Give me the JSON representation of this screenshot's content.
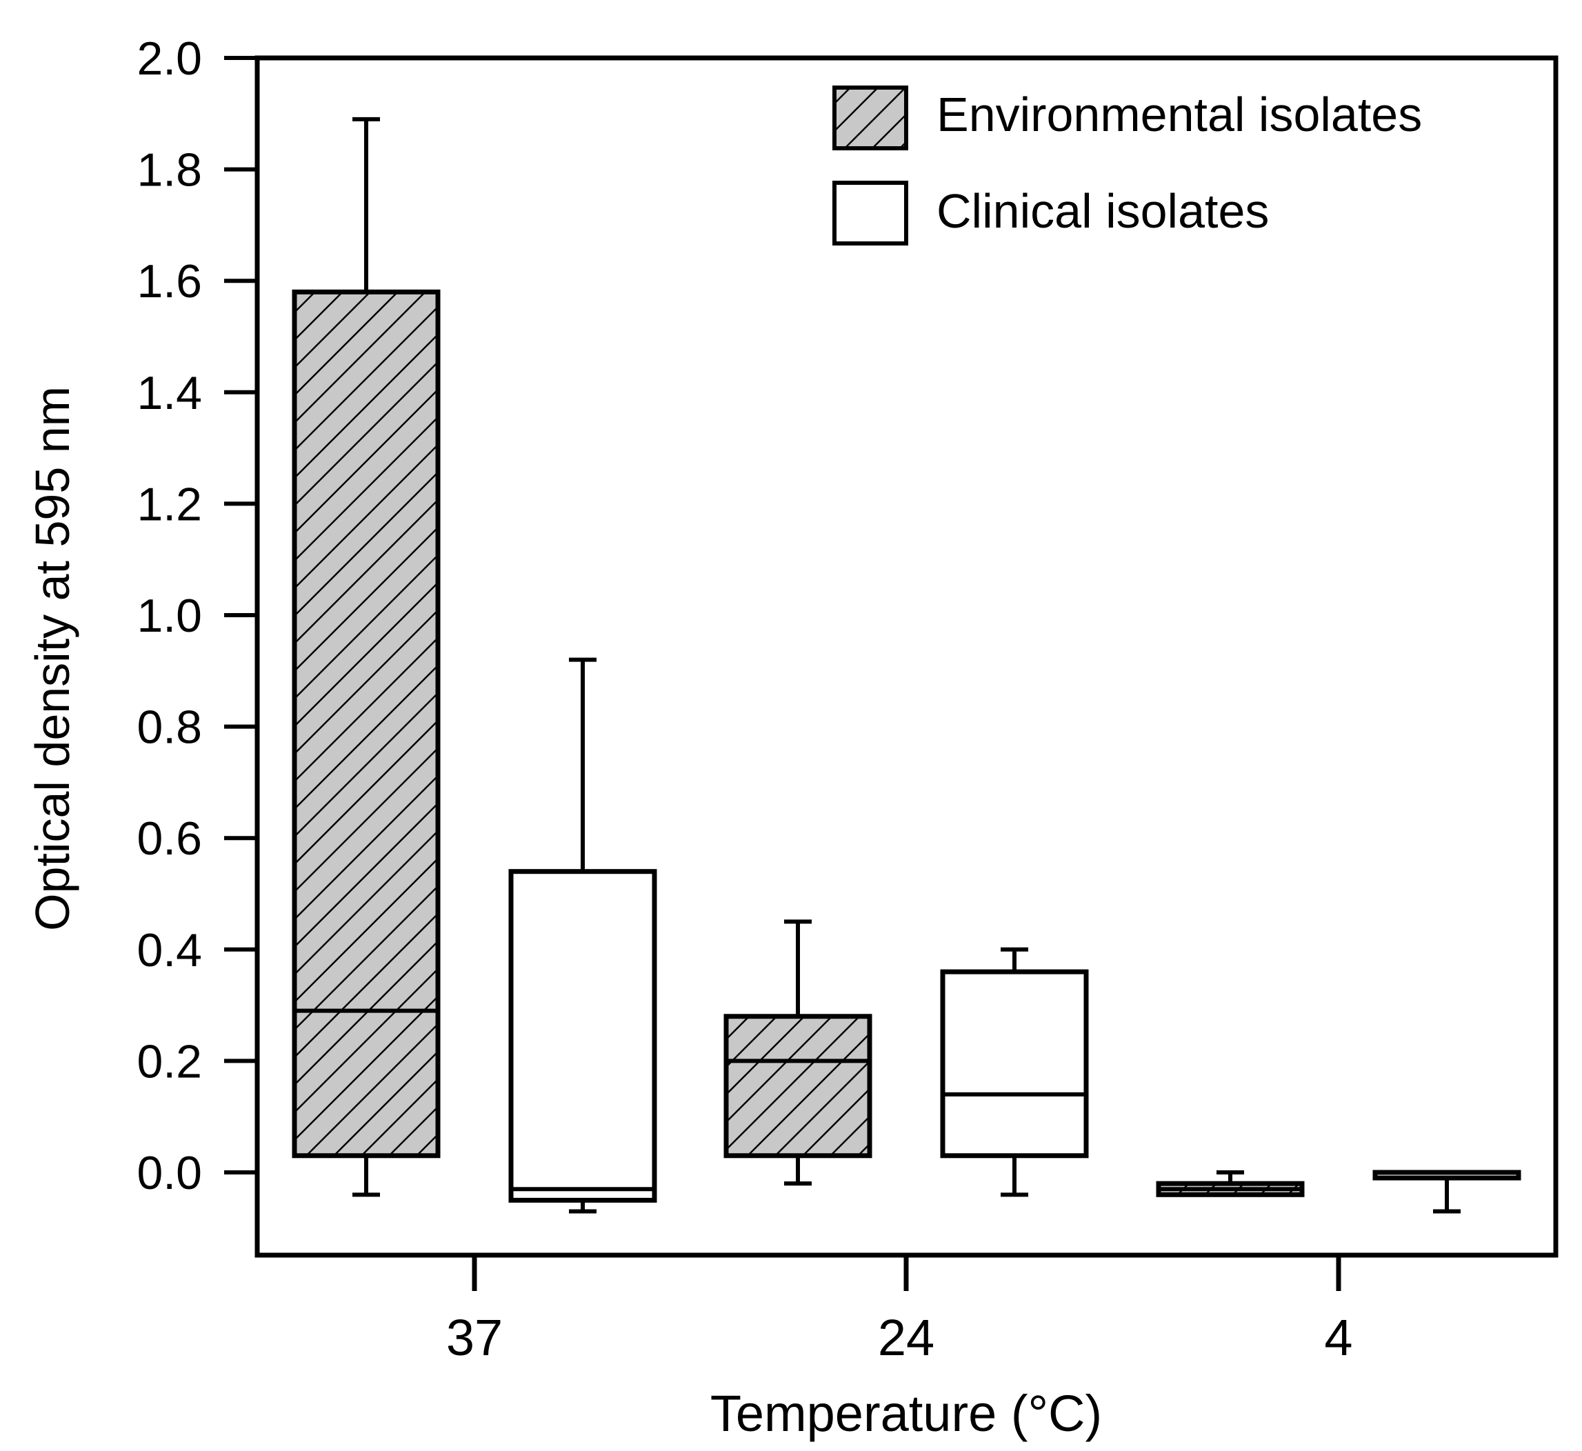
{
  "chart_data": {
    "type": "boxplot",
    "title": "",
    "xlabel": "Temperature (°C)",
    "ylabel": "Optical density at 595 nm",
    "categories": [
      "37",
      "24",
      "4"
    ],
    "ylim": [
      -0.14,
      2.0
    ],
    "yticks": [
      "0.0",
      "0.2",
      "0.4",
      "0.6",
      "0.8",
      "1.0",
      "1.2",
      "1.4",
      "1.6",
      "1.8",
      "2.0"
    ],
    "grid": false,
    "legend_position": "top-right",
    "series": [
      {
        "name": "Environmental isolates",
        "fill": "#c8c8c8",
        "pattern": "diagonal-hatch",
        "boxes": [
          {
            "category": "37",
            "whisker_low": -0.04,
            "q1": 0.03,
            "median": 0.29,
            "q3": 1.58,
            "whisker_high": 1.89
          },
          {
            "category": "24",
            "whisker_low": -0.02,
            "q1": 0.03,
            "median": 0.2,
            "q3": 0.28,
            "whisker_high": 0.45
          },
          {
            "category": "4",
            "whisker_low": -0.04,
            "q1": -0.04,
            "median": -0.03,
            "q3": -0.02,
            "whisker_high": 0.0
          }
        ]
      },
      {
        "name": "Clinical isolates",
        "fill": "#ffffff",
        "pattern": "none",
        "boxes": [
          {
            "category": "37",
            "whisker_low": -0.07,
            "q1": -0.05,
            "median": -0.03,
            "q3": 0.54,
            "whisker_high": 0.92
          },
          {
            "category": "24",
            "whisker_low": -0.04,
            "q1": 0.03,
            "median": 0.14,
            "q3": 0.36,
            "whisker_high": 0.4
          },
          {
            "category": "4",
            "whisker_low": -0.07,
            "q1": -0.01,
            "median": 0.0,
            "q3": 0.0,
            "whisker_high": 0.0
          }
        ]
      }
    ]
  },
  "colors": {
    "stroke": "#000000",
    "background": "#ffffff"
  }
}
